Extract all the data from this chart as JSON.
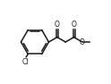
{
  "bg_color": "#ffffff",
  "line_color": "#1a1a1a",
  "line_width": 1.1,
  "font_size_label": 5.5,
  "cl_label": "Cl",
  "o_ketone": "O",
  "o_ester": "O",
  "ome_label": "O"
}
